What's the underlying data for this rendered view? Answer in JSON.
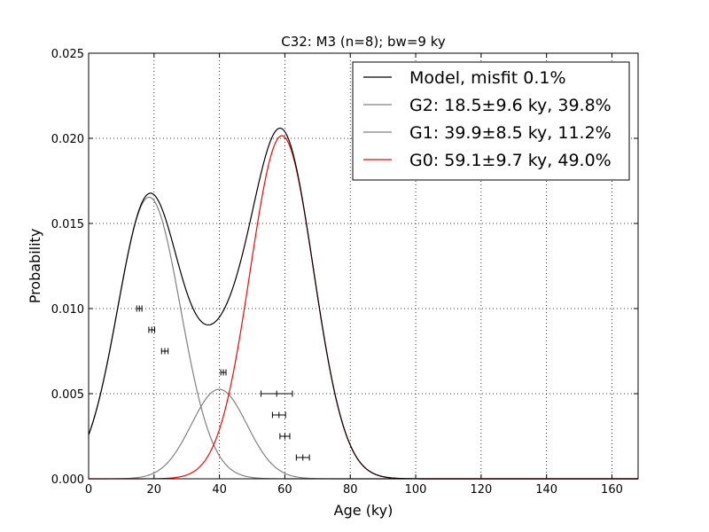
{
  "chart_data": {
    "type": "line",
    "title": "C32: M3 (n=8); bw=9 ky",
    "xlabel": "Age (ky)",
    "ylabel": "Probability",
    "xlim": [
      0,
      168
    ],
    "ylim": [
      0,
      0.025
    ],
    "x_ticks": [
      "0",
      "20",
      "40",
      "60",
      "80",
      "100",
      "120",
      "140",
      "160"
    ],
    "y_ticks": [
      "0.000",
      "0.005",
      "0.010",
      "0.015",
      "0.020",
      "0.025"
    ],
    "grid": true,
    "legend_position": "top-right",
    "series": [
      {
        "name": "Model, misfit 0.1%",
        "color": "#000000",
        "kind": "sum"
      },
      {
        "name": "G2: 18.5±9.6 ky, 39.8%",
        "color": "#808080",
        "kind": "gaussian",
        "mean": 18.5,
        "sd": 9.6,
        "weight": 0.398
      },
      {
        "name": "G1: 39.9±8.5 ky, 11.2%",
        "color": "#808080",
        "kind": "gaussian",
        "mean": 39.9,
        "sd": 8.5,
        "weight": 0.112
      },
      {
        "name": "G0: 59.1±9.7 ky, 49.0%",
        "color": "#ff0000",
        "kind": "gaussian",
        "mean": 59.1,
        "sd": 9.7,
        "weight": 0.49
      }
    ],
    "samples": [
      {
        "age": 15.5,
        "err": 0.8,
        "y": 0.01
      },
      {
        "age": 19.3,
        "err": 0.9,
        "y": 0.00875
      },
      {
        "age": 23.3,
        "err": 1.0,
        "y": 0.0075
      },
      {
        "age": 41.2,
        "err": 0.8,
        "y": 0.00625
      },
      {
        "age": 57.5,
        "err": 4.8,
        "y": 0.005
      },
      {
        "age": 58.2,
        "err": 2.0,
        "y": 0.00375
      },
      {
        "age": 60.0,
        "err": 1.5,
        "y": 0.0025
      },
      {
        "age": 65.5,
        "err": 2.0,
        "y": 0.00125
      }
    ]
  }
}
